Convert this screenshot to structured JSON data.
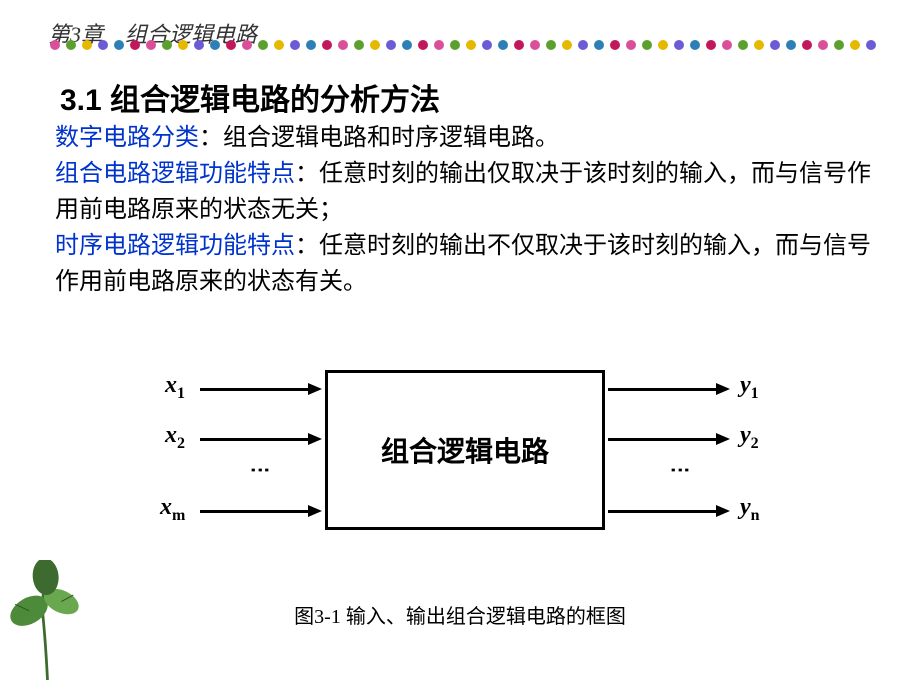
{
  "chapter_title": "第3章　组合逻辑电路",
  "section_title": "3.1 组合逻辑电路的分析方法",
  "body": {
    "hl1": "数字电路分类",
    "t1": "：组合逻辑电路和时序逻辑电路。",
    "hl2": "组合电路逻辑功能特点",
    "t2": "：任意时刻的输出仅取决于该时刻的输入，而与信号作用前电路原来的状态无关；",
    "hl3": "时序电路逻辑功能特点",
    "t3": "：任意时刻的输出不仅取决于该时刻的输入，而与信号作用前电路原来的状态有关。"
  },
  "diagram": {
    "box_label": "组合逻辑电路",
    "inputs": [
      "x",
      "x",
      "x"
    ],
    "input_subs": [
      "1",
      "2",
      "m"
    ],
    "outputs": [
      "y",
      "y",
      "y"
    ],
    "output_subs": [
      "1",
      "2",
      "n"
    ],
    "box": {
      "border_color": "#000000",
      "bg": "#ffffff"
    }
  },
  "caption": "图3-1 输入、输出组合逻辑电路的框图",
  "dot_colors": [
    "#d94f9a",
    "#5aa02c",
    "#e6b800",
    "#6b5bd6",
    "#2e7fb8",
    "#c2185b",
    "#d94f9a",
    "#5aa02c",
    "#e6b800",
    "#6b5bd6",
    "#2e7fb8",
    "#c2185b"
  ],
  "leaf_colors": {
    "stem": "#3d6b2f",
    "leaf1": "#4d8a3a",
    "leaf2": "#6aa84f",
    "leaf3": "#3d6b2f"
  }
}
